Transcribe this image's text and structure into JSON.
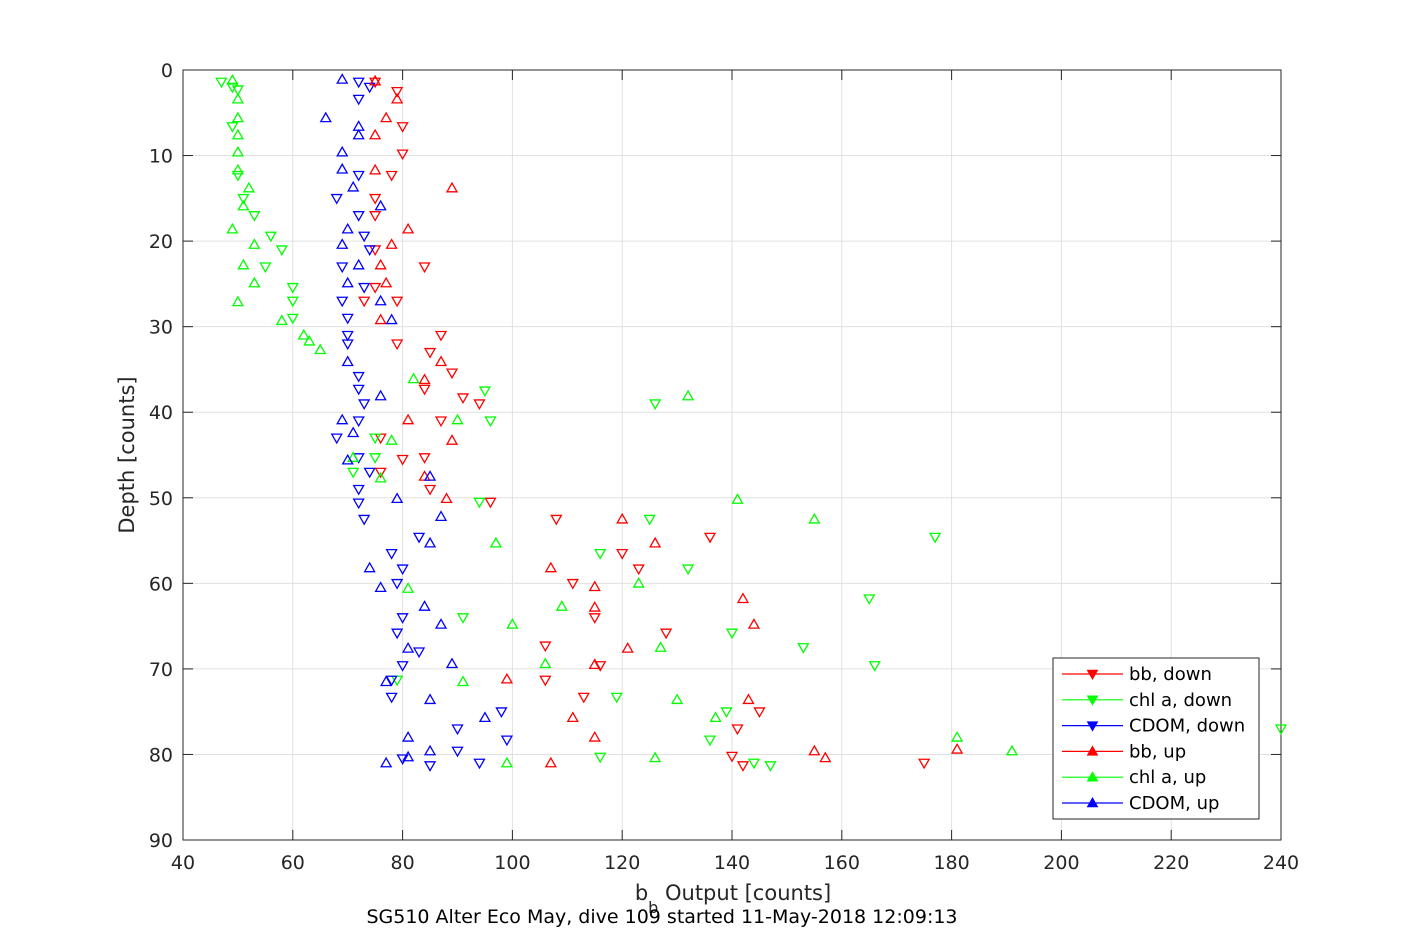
{
  "chart_data": {
    "type": "scatter",
    "xlabel_main": "b",
    "xlabel_sub": "b",
    "xlabel_rest": " Output [counts]",
    "ylabel": "Depth [counts]",
    "caption": "SG510 Alter Eco May, dive 109 started 11-May-2018 12:09:13",
    "xlim": [
      40,
      240
    ],
    "ylim": [
      0,
      90
    ],
    "y_reversed": true,
    "grid": true,
    "legend_position": "lower-right",
    "x_ticks": [
      "40",
      "60",
      "80",
      "100",
      "120",
      "140",
      "160",
      "180",
      "200",
      "220",
      "240"
    ],
    "y_ticks": [
      "0",
      "10",
      "20",
      "30",
      "40",
      "50",
      "60",
      "70",
      "80",
      "90"
    ],
    "series": [
      {
        "name": "bb, down",
        "color": "#ff0000",
        "marker": "triangle-down",
        "points": [
          [
            75,
            1.4
          ],
          [
            79,
            2.5
          ],
          [
            80,
            6.6
          ],
          [
            80,
            9.8
          ],
          [
            78,
            12.3
          ],
          [
            75,
            15.0
          ],
          [
            75,
            17.0
          ],
          [
            75,
            21.0
          ],
          [
            84,
            23.0
          ],
          [
            75,
            25.4
          ],
          [
            73,
            27.0
          ],
          [
            79,
            27.0
          ],
          [
            79,
            32.0
          ],
          [
            85,
            33.0
          ],
          [
            87,
            31.0
          ],
          [
            89,
            35.4
          ],
          [
            84,
            37.3
          ],
          [
            91,
            38.3
          ],
          [
            94,
            39.0
          ],
          [
            87,
            41.0
          ],
          [
            76,
            43.0
          ],
          [
            84,
            45.3
          ],
          [
            80,
            45.5
          ],
          [
            76,
            47.0
          ],
          [
            85,
            49.0
          ],
          [
            96,
            50.5
          ],
          [
            108,
            52.5
          ],
          [
            136,
            54.6
          ],
          [
            120,
            56.5
          ],
          [
            123,
            58.3
          ],
          [
            111,
            60.0
          ],
          [
            115,
            64.0
          ],
          [
            128,
            65.8
          ],
          [
            106,
            67.3
          ],
          [
            116,
            69.6
          ],
          [
            106,
            71.3
          ],
          [
            113,
            73.3
          ],
          [
            141,
            77.0
          ],
          [
            145,
            75.0
          ],
          [
            140,
            80.2
          ],
          [
            142,
            81.3
          ],
          [
            175,
            81.0
          ]
        ]
      },
      {
        "name": "chl a, down",
        "color": "#00ff00",
        "marker": "triangle-down",
        "points": [
          [
            47,
            1.4
          ],
          [
            49,
            2.0
          ],
          [
            50,
            2.3
          ],
          [
            49,
            6.6
          ],
          [
            50,
            12.3
          ],
          [
            51,
            15.0
          ],
          [
            53,
            17.0
          ],
          [
            58,
            21.0
          ],
          [
            55,
            23.0
          ],
          [
            56,
            19.4
          ],
          [
            60,
            25.4
          ],
          [
            60,
            27.0
          ],
          [
            60,
            29.0
          ],
          [
            95,
            37.5
          ],
          [
            126,
            39.0
          ],
          [
            96,
            41.0
          ],
          [
            75,
            43.0
          ],
          [
            75,
            45.3
          ],
          [
            71,
            47.0
          ],
          [
            94,
            50.5
          ],
          [
            125,
            52.5
          ],
          [
            177,
            54.6
          ],
          [
            116,
            56.5
          ],
          [
            132,
            58.3
          ],
          [
            165,
            61.8
          ],
          [
            91,
            64.0
          ],
          [
            140,
            65.8
          ],
          [
            153,
            67.5
          ],
          [
            166,
            69.6
          ],
          [
            79,
            71.3
          ],
          [
            119,
            73.3
          ],
          [
            139,
            75.0
          ],
          [
            136,
            78.3
          ],
          [
            240,
            77.0
          ],
          [
            116,
            80.3
          ],
          [
            144,
            81.0
          ],
          [
            147,
            81.3
          ]
        ]
      },
      {
        "name": "CDOM, down",
        "color": "#0000ff",
        "marker": "triangle-down",
        "points": [
          [
            72,
            1.4
          ],
          [
            74,
            2.0
          ],
          [
            72,
            3.4
          ],
          [
            72,
            12.3
          ],
          [
            68,
            15.0
          ],
          [
            72,
            17.0
          ],
          [
            73,
            19.4
          ],
          [
            74,
            21.0
          ],
          [
            69,
            23.0
          ],
          [
            73,
            25.4
          ],
          [
            69,
            27.0
          ],
          [
            70,
            29.0
          ],
          [
            70,
            31.0
          ],
          [
            70,
            32.0
          ],
          [
            72,
            35.8
          ],
          [
            72,
            37.3
          ],
          [
            73,
            39.0
          ],
          [
            72,
            41.0
          ],
          [
            68,
            43.0
          ],
          [
            72,
            45.3
          ],
          [
            74,
            47.0
          ],
          [
            72,
            49.0
          ],
          [
            72,
            50.6
          ],
          [
            73,
            52.5
          ],
          [
            83,
            54.6
          ],
          [
            78,
            56.5
          ],
          [
            80,
            58.3
          ],
          [
            79,
            60.0
          ],
          [
            80,
            64.0
          ],
          [
            79,
            65.8
          ],
          [
            83,
            68.0
          ],
          [
            80,
            69.6
          ],
          [
            78,
            71.3
          ],
          [
            78,
            73.3
          ],
          [
            90,
            77.0
          ],
          [
            98,
            75.0
          ],
          [
            99,
            78.3
          ],
          [
            90,
            79.6
          ],
          [
            80,
            80.5
          ],
          [
            85,
            81.3
          ],
          [
            94,
            81.0
          ]
        ]
      },
      {
        "name": "bb, up",
        "color": "#ff0000",
        "marker": "triangle-up",
        "points": [
          [
            75,
            1.3
          ],
          [
            79,
            3.4
          ],
          [
            77,
            5.6
          ],
          [
            75,
            7.6
          ],
          [
            75,
            11.7
          ],
          [
            89,
            13.8
          ],
          [
            81,
            18.6
          ],
          [
            78,
            20.4
          ],
          [
            76,
            22.8
          ],
          [
            77,
            24.9
          ],
          [
            76,
            29.2
          ],
          [
            87,
            34.1
          ],
          [
            84,
            36.2
          ],
          [
            89,
            43.3
          ],
          [
            81,
            40.9
          ],
          [
            84,
            47.5
          ],
          [
            88,
            50.1
          ],
          [
            120,
            52.5
          ],
          [
            126,
            55.3
          ],
          [
            107,
            58.2
          ],
          [
            115,
            60.4
          ],
          [
            142,
            61.8
          ],
          [
            115,
            62.8
          ],
          [
            144,
            64.8
          ],
          [
            121,
            67.6
          ],
          [
            115,
            69.5
          ],
          [
            99,
            71.2
          ],
          [
            143,
            73.6
          ],
          [
            111,
            75.7
          ],
          [
            115,
            78.0
          ],
          [
            155,
            79.6
          ],
          [
            157,
            80.4
          ],
          [
            181,
            79.4
          ],
          [
            107,
            81.0
          ]
        ]
      },
      {
        "name": "chl a, up",
        "color": "#00ff00",
        "marker": "triangle-up",
        "points": [
          [
            49,
            1.2
          ],
          [
            50,
            3.4
          ],
          [
            50,
            5.6
          ],
          [
            50,
            7.6
          ],
          [
            50,
            9.6
          ],
          [
            50,
            11.7
          ],
          [
            52,
            13.8
          ],
          [
            51,
            15.9
          ],
          [
            49,
            18.6
          ],
          [
            53,
            20.4
          ],
          [
            51,
            22.8
          ],
          [
            53,
            24.9
          ],
          [
            50,
            27.1
          ],
          [
            58,
            29.3
          ],
          [
            62,
            31.0
          ],
          [
            63,
            31.7
          ],
          [
            65,
            32.7
          ],
          [
            82,
            36.1
          ],
          [
            132,
            38.1
          ],
          [
            90,
            40.9
          ],
          [
            78,
            43.3
          ],
          [
            71,
            45.3
          ],
          [
            76,
            47.7
          ],
          [
            141,
            50.2
          ],
          [
            155,
            52.5
          ],
          [
            97,
            55.3
          ],
          [
            123,
            60.0
          ],
          [
            81,
            60.6
          ],
          [
            109,
            62.7
          ],
          [
            100,
            64.8
          ],
          [
            127,
            67.5
          ],
          [
            106,
            69.4
          ],
          [
            91,
            71.5
          ],
          [
            130,
            73.6
          ],
          [
            137,
            75.7
          ],
          [
            181,
            78.0
          ],
          [
            191,
            79.6
          ],
          [
            126,
            80.4
          ],
          [
            99,
            81.0
          ]
        ]
      },
      {
        "name": "CDOM, up",
        "color": "#0000ff",
        "marker": "triangle-up",
        "points": [
          [
            69,
            1.1
          ],
          [
            66,
            5.6
          ],
          [
            72,
            6.6
          ],
          [
            72,
            7.6
          ],
          [
            69,
            9.6
          ],
          [
            69,
            11.6
          ],
          [
            71,
            13.7
          ],
          [
            76,
            15.9
          ],
          [
            70,
            18.6
          ],
          [
            69,
            20.4
          ],
          [
            72,
            22.8
          ],
          [
            70,
            24.9
          ],
          [
            76,
            27.0
          ],
          [
            78,
            29.2
          ],
          [
            70,
            34.1
          ],
          [
            76,
            38.1
          ],
          [
            69,
            40.9
          ],
          [
            71,
            42.4
          ],
          [
            70,
            45.6
          ],
          [
            85,
            47.5
          ],
          [
            79,
            50.1
          ],
          [
            87,
            52.2
          ],
          [
            85,
            55.3
          ],
          [
            74,
            58.2
          ],
          [
            76,
            60.5
          ],
          [
            84,
            62.7
          ],
          [
            87,
            64.8
          ],
          [
            81,
            67.6
          ],
          [
            89,
            69.4
          ],
          [
            77,
            71.5
          ],
          [
            85,
            73.6
          ],
          [
            95,
            75.7
          ],
          [
            81,
            78.0
          ],
          [
            85,
            79.6
          ],
          [
            81,
            80.3
          ],
          [
            77,
            81.0
          ]
        ]
      }
    ]
  }
}
